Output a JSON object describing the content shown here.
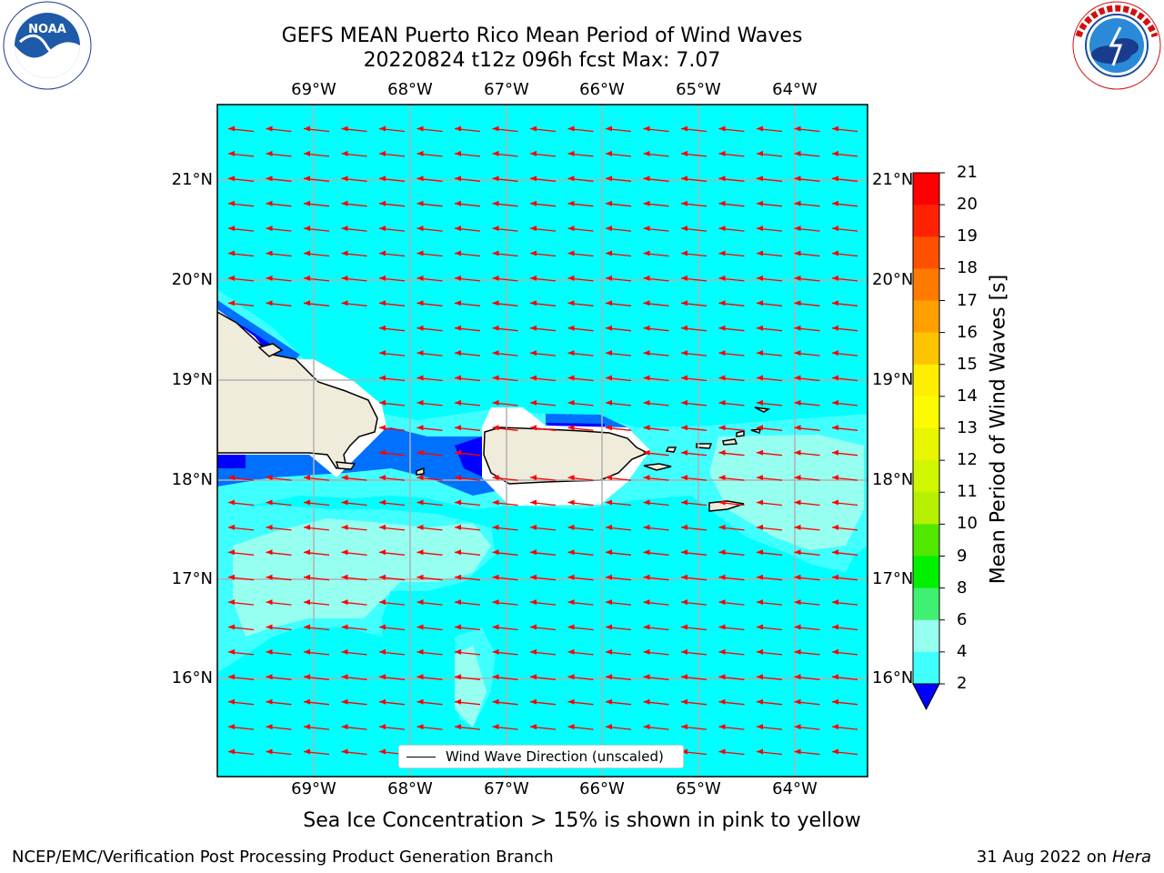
{
  "title_line1": "GEFS MEAN Puerto Rico Mean Period of Wind Waves",
  "title_line2": "20220824 t12z 096h fcst   Max: 7.07",
  "logos": {
    "left": "NOAA",
    "left_ring_text": "NATIONAL OCEANIC AND ATMOSPHERIC ADMINISTRATION · U.S. DEPARTMENT OF COMMERCE",
    "right_ring_text": "NATIONAL WEATHER SERVICE"
  },
  "map": {
    "lon_labels": [
      "69°W",
      "68°W",
      "67°W",
      "66°W",
      "65°W",
      "64°W"
    ],
    "lat_labels": [
      "21°N",
      "20°N",
      "19°N",
      "18°N",
      "17°N",
      "16°N"
    ],
    "legend_label": "Wind Wave Direction (unscaled)",
    "arrow_color": "#ff0000",
    "land_color": "#efecdc",
    "background_field": "#00ffff"
  },
  "colorbar": {
    "label": "Mean Period of Wind Waves [s]",
    "ticks": [
      "21",
      "20",
      "19",
      "18",
      "17",
      "16",
      "15",
      "14",
      "13",
      "12",
      "11",
      "10",
      "9",
      "8",
      "6",
      "4",
      "2"
    ],
    "colors": [
      "#ff0000",
      "#ff2200",
      "#ff5000",
      "#ff7a00",
      "#ffa000",
      "#ffc400",
      "#ffee00",
      "#fdfb00",
      "#e8f600",
      "#d0f600",
      "#b6f000",
      "#50e800",
      "#00f000",
      "#40f070",
      "#96fff0",
      "#40ffff",
      "#00ffff",
      "#0070ff"
    ],
    "extend_color": "#0000ff"
  },
  "bottom_note": "Sea Ice Concentration > 15% is shown in pink to yellow",
  "footer_left": "NCEP/EMC/Verification Post Processing Product Generation Branch",
  "footer_right_date": "31 Aug 2022 on",
  "footer_right_host": "Hera"
}
